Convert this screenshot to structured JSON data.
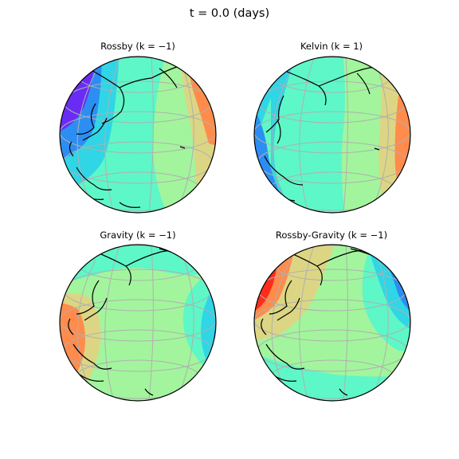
{
  "title": "t = 0.0 (days)",
  "panels": [
    {
      "title": "Rossby (k = −1)"
    },
    {
      "title": "Kelvin (k = 1)"
    },
    {
      "title": "Gravity (k = −1)"
    },
    {
      "title": "Rossby-Gravity (k = −1)"
    }
  ],
  "colormap": "rainbow",
  "palette": [
    "#6a2cf5",
    "#2c8ef2",
    "#30d5e6",
    "#5ef7c8",
    "#a2f59d",
    "#dcd684",
    "#ff8c4c",
    "#ff2c1c"
  ],
  "gridlines": true,
  "coastlines": true
}
